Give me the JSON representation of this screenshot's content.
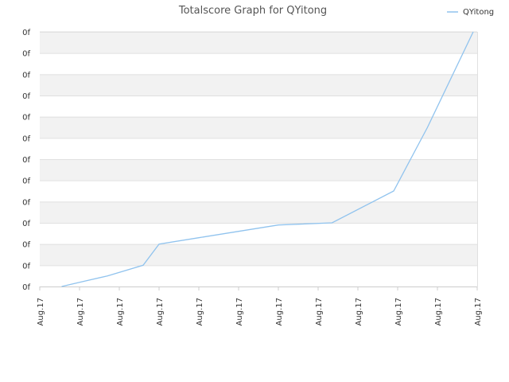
{
  "chart_data": {
    "type": "line",
    "title": "Totalscore Graph for QYitong",
    "xlabel": "",
    "ylabel": "",
    "x_tick_labels": [
      "Aug.17",
      "Aug.17",
      "Aug.17",
      "Aug.17",
      "Aug.17",
      "Aug.17",
      "Aug.17",
      "Aug.17",
      "Aug.17",
      "Aug.17",
      "Aug.17",
      "Aug.17"
    ],
    "y_tick_labels": [
      "0f",
      "0f",
      "0f",
      "0f",
      "0f",
      "0f",
      "0f",
      "0f",
      "0f",
      "0f",
      "0f",
      "0f",
      "0f"
    ],
    "xlim": [
      0,
      11
    ],
    "ylim": [
      0,
      12
    ],
    "grid": "horizontal bands",
    "legend_position": "top-right",
    "series": [
      {
        "name": "QYitong",
        "color": "#90c3ee",
        "x": [
          0.55,
          1.0,
          1.7,
          2.6,
          3.0,
          4.0,
          5.0,
          6.0,
          7.35,
          8.9,
          9.75,
          10.9
        ],
        "y": [
          0.0,
          0.2,
          0.5,
          1.0,
          2.0,
          2.3,
          2.6,
          2.9,
          3.0,
          4.5,
          7.5,
          12.0
        ]
      }
    ]
  }
}
